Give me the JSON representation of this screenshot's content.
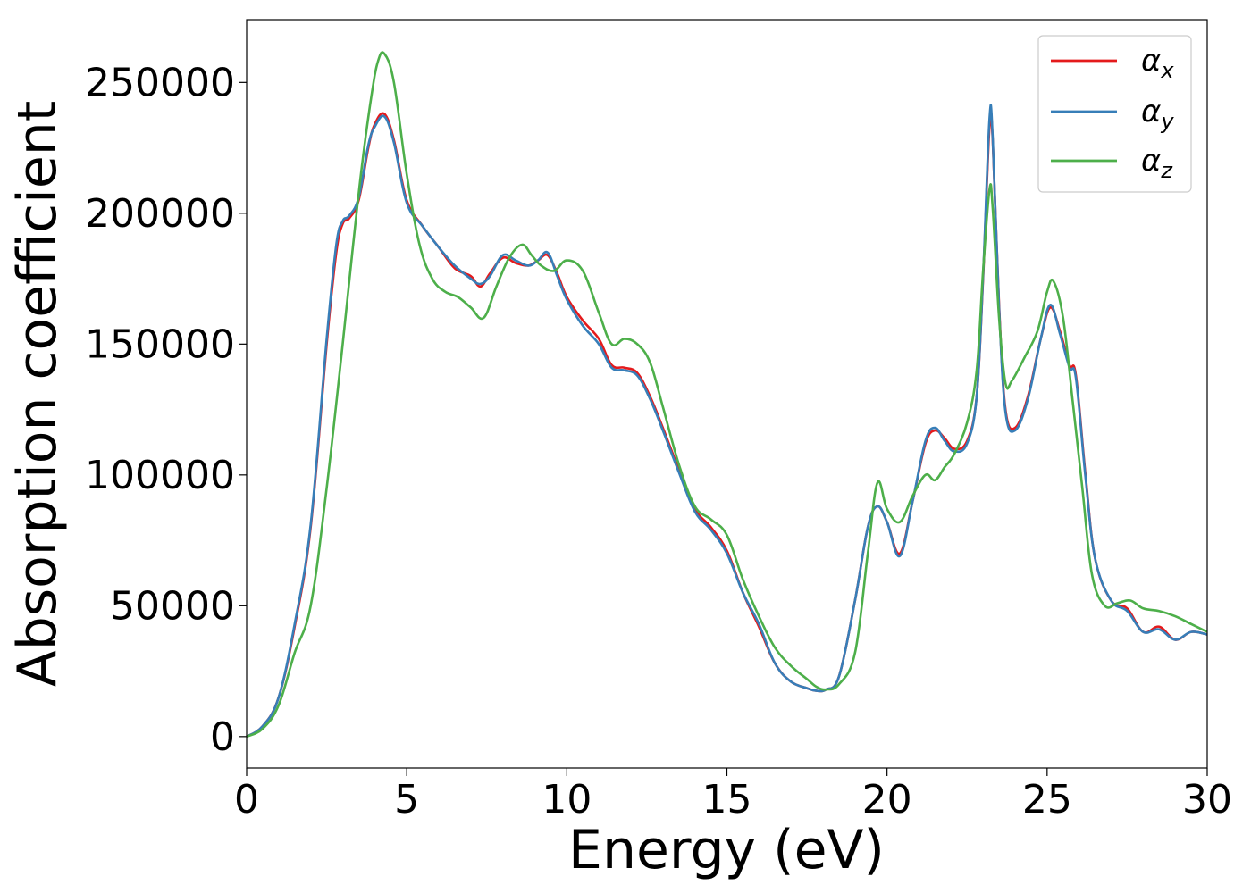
{
  "chart_data": {
    "type": "line",
    "title": "",
    "xlabel": "Energy (eV)",
    "ylabel": "Absorption coefficient",
    "xlim": [
      0,
      30
    ],
    "ylim": [
      -12000,
      274000
    ],
    "xticks": [
      0,
      5,
      10,
      15,
      20,
      25,
      30
    ],
    "xtick_labels": [
      "0",
      "5",
      "10",
      "15",
      "20",
      "25",
      "30"
    ],
    "yticks": [
      0,
      50000,
      100000,
      150000,
      200000,
      250000
    ],
    "ytick_labels": [
      "0",
      "50000",
      "100000",
      "150000",
      "200000",
      "250000"
    ],
    "grid": false,
    "legend_position": "top-right",
    "series": [
      {
        "name": "αx",
        "symbol": "α",
        "subscript": "x",
        "color": "#e41a1c",
        "x": [
          0,
          0.5,
          1.0,
          1.5,
          2.0,
          2.5,
          2.8,
          3.0,
          3.2,
          3.5,
          3.8,
          4.0,
          4.3,
          4.6,
          5.0,
          5.5,
          6.0,
          6.5,
          7.0,
          7.3,
          7.6,
          8.0,
          8.4,
          8.8,
          9.1,
          9.4,
          9.7,
          10.0,
          10.5,
          11.0,
          11.4,
          11.8,
          12.2,
          12.6,
          13.0,
          13.5,
          14.0,
          14.5,
          15.0,
          15.5,
          16.0,
          16.5,
          17.0,
          17.5,
          17.8,
          18.1,
          18.5,
          19.0,
          19.4,
          19.7,
          20.0,
          20.4,
          20.8,
          21.2,
          21.5,
          21.8,
          22.1,
          22.5,
          22.8,
          23.0,
          23.2,
          23.3,
          23.5,
          23.7,
          24.0,
          24.4,
          24.8,
          25.1,
          25.4,
          25.7,
          25.9,
          26.2,
          26.5,
          27.0,
          27.5,
          28.0,
          28.5,
          29.0,
          29.5,
          30.0
        ],
        "y": [
          0,
          4000,
          15000,
          42000,
          80000,
          150000,
          185000,
          196000,
          198000,
          205000,
          225000,
          234000,
          238000,
          228000,
          205000,
          195000,
          187000,
          179000,
          176000,
          172000,
          177000,
          183000,
          181000,
          180000,
          182000,
          184000,
          177000,
          168000,
          159000,
          152000,
          142000,
          141000,
          139000,
          130000,
          118000,
          102000,
          87000,
          80000,
          71000,
          55000,
          42000,
          28000,
          21000,
          18500,
          17500,
          18000,
          23000,
          52000,
          80000,
          88000,
          82000,
          70000,
          90000,
          112000,
          117000,
          114000,
          110000,
          113000,
          130000,
          175000,
          233000,
          228000,
          165000,
          125000,
          118000,
          130000,
          152000,
          164000,
          155000,
          142000,
          138000,
          100000,
          68000,
          52000,
          49000,
          40000,
          42000,
          37000,
          40000,
          39000
        ]
      },
      {
        "name": "αy",
        "symbol": "α",
        "subscript": "y",
        "color": "#377eb8",
        "x": [
          0,
          0.5,
          1.0,
          1.5,
          2.0,
          2.5,
          2.8,
          3.0,
          3.2,
          3.5,
          3.8,
          4.0,
          4.3,
          4.6,
          5.0,
          5.5,
          6.0,
          6.5,
          7.0,
          7.3,
          7.6,
          8.0,
          8.4,
          8.8,
          9.1,
          9.4,
          9.7,
          10.0,
          10.5,
          11.0,
          11.4,
          11.8,
          12.2,
          12.6,
          13.0,
          13.5,
          14.0,
          14.5,
          15.0,
          15.5,
          16.0,
          16.5,
          17.0,
          17.5,
          17.8,
          18.1,
          18.5,
          19.0,
          19.4,
          19.7,
          20.0,
          20.4,
          20.8,
          21.2,
          21.5,
          21.8,
          22.1,
          22.5,
          22.8,
          23.0,
          23.2,
          23.3,
          23.5,
          23.7,
          24.0,
          24.4,
          24.8,
          25.1,
          25.4,
          25.7,
          25.9,
          26.2,
          26.5,
          27.0,
          27.5,
          28.0,
          28.5,
          29.0,
          29.5,
          30.0
        ],
        "y": [
          0,
          4000,
          15000,
          43000,
          81000,
          152000,
          188000,
          197000,
          199000,
          206000,
          226000,
          233000,
          237000,
          227000,
          204000,
          195000,
          187000,
          180000,
          175000,
          173000,
          176000,
          184000,
          182000,
          180000,
          182000,
          185000,
          176000,
          167000,
          157000,
          150000,
          141000,
          140000,
          138000,
          129000,
          117000,
          101000,
          86000,
          79000,
          70000,
          55000,
          43000,
          28000,
          21000,
          18500,
          17500,
          18000,
          23000,
          52000,
          80000,
          88000,
          82000,
          69000,
          90000,
          113000,
          118000,
          113000,
          109000,
          112000,
          130000,
          176000,
          236000,
          229000,
          164000,
          124000,
          117000,
          129000,
          152000,
          165000,
          154000,
          141000,
          137000,
          99000,
          68000,
          52000,
          48000,
          40000,
          41000,
          37000,
          40000,
          39000
        ]
      },
      {
        "name": "αz",
        "symbol": "α",
        "subscript": "z",
        "color": "#4daf4a",
        "x": [
          0,
          0.5,
          1.0,
          1.5,
          2.0,
          2.5,
          3.0,
          3.3,
          3.6,
          3.9,
          4.1,
          4.3,
          4.6,
          5.0,
          5.4,
          5.8,
          6.2,
          6.6,
          7.0,
          7.4,
          7.8,
          8.2,
          8.6,
          8.9,
          9.2,
          9.6,
          10.0,
          10.5,
          11.0,
          11.4,
          11.8,
          12.2,
          12.6,
          13.0,
          13.5,
          14.0,
          14.5,
          15.0,
          15.5,
          16.0,
          16.5,
          17.0,
          17.5,
          17.8,
          18.1,
          18.5,
          19.0,
          19.4,
          19.7,
          20.0,
          20.4,
          20.8,
          21.2,
          21.5,
          21.8,
          22.1,
          22.5,
          22.8,
          23.0,
          23.2,
          23.3,
          23.5,
          23.7,
          23.9,
          24.3,
          24.7,
          25.0,
          25.2,
          25.5,
          25.8,
          26.1,
          26.4,
          26.8,
          27.2,
          27.6,
          28.0,
          28.5,
          29.0,
          29.5,
          30.0
        ],
        "y": [
          0,
          3000,
          12000,
          32000,
          50000,
          95000,
          150000,
          185000,
          218000,
          245000,
          258000,
          261000,
          250000,
          215000,
          188000,
          175000,
          170000,
          168000,
          164000,
          160000,
          172000,
          183000,
          188000,
          184000,
          180000,
          178000,
          182000,
          178000,
          162000,
          150000,
          152000,
          150000,
          143000,
          126000,
          104000,
          88000,
          83000,
          77000,
          60000,
          46000,
          34000,
          27000,
          22000,
          19000,
          18000,
          20000,
          32000,
          70000,
          97000,
          87000,
          82000,
          92000,
          100000,
          98000,
          103000,
          108000,
          120000,
          140000,
          178000,
          209000,
          202000,
          160000,
          135000,
          136000,
          145000,
          155000,
          170000,
          174000,
          160000,
          128000,
          95000,
          62000,
          50000,
          51000,
          52000,
          49000,
          48000,
          46000,
          43000,
          40000
        ]
      }
    ]
  }
}
